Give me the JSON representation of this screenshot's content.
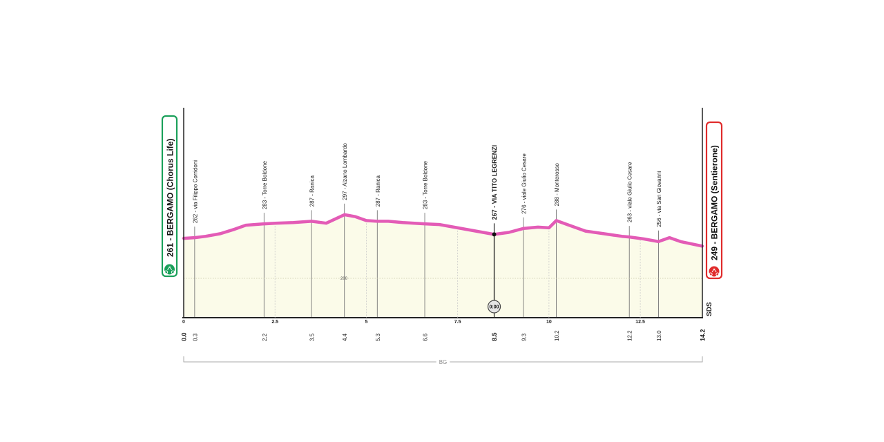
{
  "start": {
    "label": "261 - BERGAMO (Chorus Life)",
    "color": "#1aa05a"
  },
  "finish": {
    "label": "249 - BERGAMO (Sentierone)",
    "color": "#e02b2b"
  },
  "side_label": "SDS",
  "region_label": "BG",
  "elevation_mark": "200",
  "timecheck": {
    "label": "0:00",
    "km": 8.5
  },
  "colors": {
    "profile_line": "#e35bb6",
    "fill": "#fbfbe9",
    "axis": "#222222",
    "guide": "#bbbbbb"
  },
  "chart_data": {
    "type": "area",
    "title": "",
    "xlabel": "",
    "ylabel": "",
    "xlim": [
      0,
      14.2
    ],
    "ylim": [
      140,
      460
    ],
    "distance_ticks": [
      0,
      2.5,
      5,
      7.5,
      10,
      12.5
    ],
    "distance_tick_labels": [
      "0",
      "2.5",
      "5",
      "7.5",
      "10",
      "12.5"
    ],
    "km_labels": [
      {
        "km": 0.0,
        "text": "0.0",
        "bold": true
      },
      {
        "km": 0.3,
        "text": "0.3",
        "bold": false
      },
      {
        "km": 2.2,
        "text": "2.2",
        "bold": false
      },
      {
        "km": 3.5,
        "text": "3.5",
        "bold": false
      },
      {
        "km": 4.4,
        "text": "4.4",
        "bold": false
      },
      {
        "km": 5.3,
        "text": "5.3",
        "bold": false
      },
      {
        "km": 6.6,
        "text": "6.6",
        "bold": false
      },
      {
        "km": 8.5,
        "text": "8.5",
        "bold": true
      },
      {
        "km": 9.3,
        "text": "9.3",
        "bold": false
      },
      {
        "km": 10.2,
        "text": "10.2",
        "bold": false
      },
      {
        "km": 12.2,
        "text": "12.2",
        "bold": false
      },
      {
        "km": 13.0,
        "text": "13.0",
        "bold": false
      },
      {
        "km": 14.2,
        "text": "14.2",
        "bold": true
      }
    ],
    "waypoints": [
      {
        "km": 0.3,
        "alt": 262,
        "label": "262 - via Filippo Corridoni",
        "bold": false
      },
      {
        "km": 2.2,
        "alt": 283,
        "label": "283 - Torre Boldone",
        "bold": false
      },
      {
        "km": 3.5,
        "alt": 287,
        "label": "287 - Ranica",
        "bold": false
      },
      {
        "km": 4.4,
        "alt": 297,
        "label": "297 - Alzano Lombardo",
        "bold": false
      },
      {
        "km": 5.3,
        "alt": 287,
        "label": "287 - Ranica",
        "bold": false
      },
      {
        "km": 6.6,
        "alt": 283,
        "label": "283 - Torre Boldone",
        "bold": false
      },
      {
        "km": 8.5,
        "alt": 267,
        "label": "267 - VIA TITO LEGRENZI",
        "bold": true
      },
      {
        "km": 9.3,
        "alt": 276,
        "label": "276 - viale Giulio Cesare",
        "bold": false
      },
      {
        "km": 10.2,
        "alt": 288,
        "label": "288 - Monterosso",
        "bold": false
      },
      {
        "km": 12.2,
        "alt": 263,
        "label": "263 - viale Giulio Cesare",
        "bold": false
      },
      {
        "km": 13.0,
        "alt": 256,
        "label": "256 - via San Giovanni",
        "bold": false
      }
    ],
    "profile": {
      "x": [
        0,
        0.3,
        0.6,
        1.0,
        1.4,
        1.7,
        2.2,
        2.5,
        3.0,
        3.5,
        3.9,
        4.4,
        4.7,
        5.0,
        5.3,
        5.6,
        6.0,
        6.6,
        7.0,
        7.5,
        8.0,
        8.5,
        8.9,
        9.3,
        9.7,
        10.0,
        10.2,
        10.5,
        11.0,
        11.5,
        12.0,
        12.2,
        12.6,
        13.0,
        13.3,
        13.6,
        14.2
      ],
      "alt": [
        261,
        262,
        264,
        268,
        275,
        281,
        283,
        284,
        285,
        287,
        284,
        297,
        294,
        288,
        287,
        287,
        285,
        283,
        282,
        277,
        272,
        267,
        270,
        276,
        278,
        277,
        288,
        282,
        272,
        268,
        264,
        263,
        260,
        256,
        262,
        256,
        249
      ]
    }
  }
}
